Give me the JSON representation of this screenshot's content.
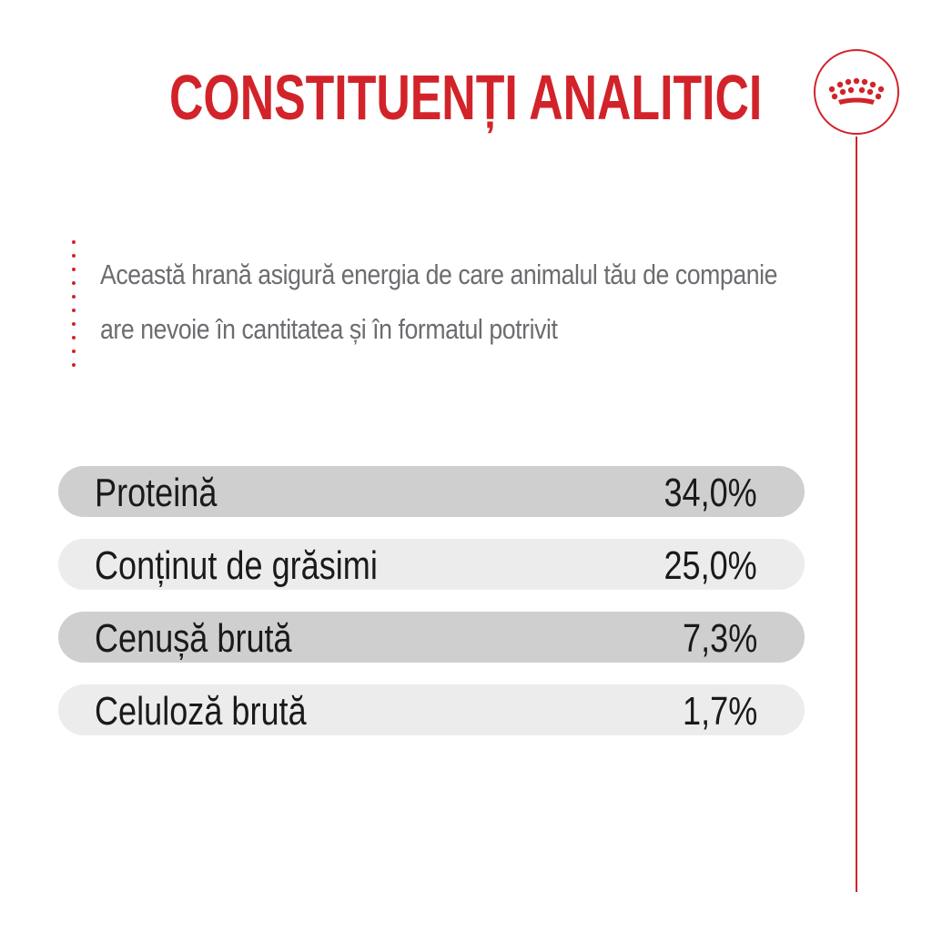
{
  "title": "CONSTITUENȚI ANALITICI",
  "logo": {
    "icon": "crown-icon",
    "color": "#d2232a"
  },
  "intro": {
    "lines": [
      "Această hrană asigură energia de care animalul tău de companie",
      "are nevoie în cantitatea și în formatul potrivit"
    ]
  },
  "constituents": [
    {
      "label": "Proteină",
      "value": "34,0%"
    },
    {
      "label": "Conținut de grăsimi",
      "value": "25,0%"
    },
    {
      "label": "Cenușă brută",
      "value": "7,3%"
    },
    {
      "label": "Celuloză brută",
      "value": "1,7%"
    }
  ],
  "colors": {
    "accent": "#d2232a",
    "row_dark": "#cfcfd0",
    "row_light": "#ececec",
    "intro_text": "#6b6d70"
  }
}
